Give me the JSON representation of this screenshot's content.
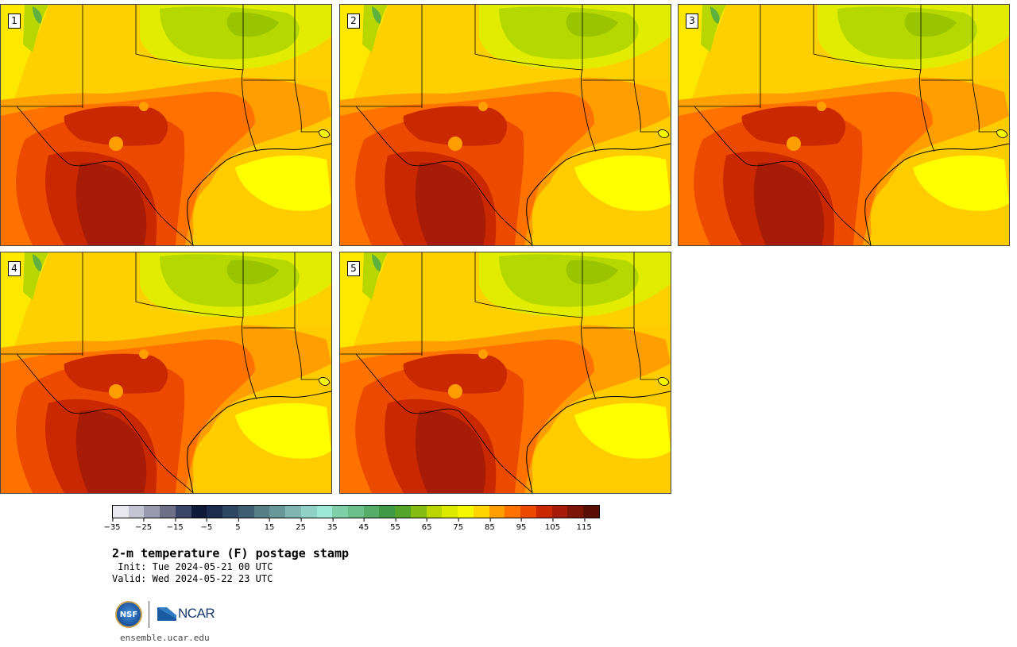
{
  "panels": [
    {
      "label": "1"
    },
    {
      "label": "2"
    },
    {
      "label": "3"
    },
    {
      "label": "4"
    },
    {
      "label": "5"
    }
  ],
  "colorbar": {
    "colors": [
      "#e8e8ee",
      "#c4c4d2",
      "#9a9aae",
      "#6d7088",
      "#3a4466",
      "#0f1a38",
      "#1c2c4e",
      "#2d4763",
      "#3d5e73",
      "#557e85",
      "#68979a",
      "#7fb6b2",
      "#8fd1c7",
      "#9ee8d8",
      "#7fcfa8",
      "#6abf8a",
      "#55ad6a",
      "#3f9a45",
      "#55a52a",
      "#86bd12",
      "#b9d600",
      "#dcea00",
      "#f5f800",
      "#ffd400",
      "#ff9e00",
      "#ff7200",
      "#ec4a00",
      "#c92800",
      "#a61c06",
      "#7d1507",
      "#5a0f05"
    ],
    "tick_labels": [
      "−35",
      "−25",
      "−15",
      "−5",
      "5",
      "15",
      "25",
      "35",
      "45",
      "55",
      "65",
      "75",
      "85",
      "95",
      "105",
      "115"
    ]
  },
  "title": "2-m temperature (F) postage stamp",
  "init_label": "Init:",
  "init_value": "Tue 2024-05-21 00 UTC",
  "valid_label": "Valid:",
  "valid_value": "Wed 2024-05-22 23 UTC",
  "logos": {
    "nsf": "NSF",
    "ncar": "NCAR"
  },
  "site": "ensemble.ucar.edu"
}
